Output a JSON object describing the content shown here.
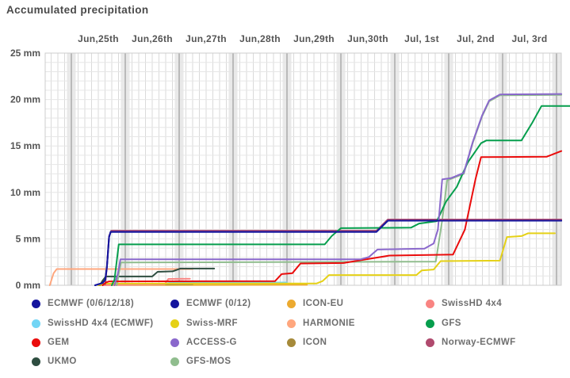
{
  "title": "Accumulated precipitation",
  "chart_data": {
    "type": "line",
    "title": "Accumulated precipitation",
    "x_axis": {
      "position": "top",
      "labels": [
        "Jun,25th",
        "Jun,26th",
        "Jun,27th",
        "Jun,28th",
        "Jun,29th",
        "Jun,30th",
        "Jul, 1st",
        "Jul, 2nd",
        "Jul, 3rd"
      ],
      "minor_divisions_per_day": 8
    },
    "y_axis": {
      "tick_labels": [
        "0 mm",
        "5 mm",
        "10 mm",
        "15 mm",
        "20 mm",
        "25 mm"
      ],
      "ticks": [
        0,
        5,
        10,
        15,
        20,
        25
      ],
      "ylim": [
        0,
        25
      ],
      "unit": "mm"
    },
    "grid": true,
    "legend_position": "bottom",
    "series": [
      {
        "id": "icon-eu",
        "name": "ICON-EU",
        "color": "#ecaa30",
        "points": [
          [
            0.5,
            0.02
          ],
          [
            4.37,
            0.05
          ]
        ]
      },
      {
        "id": "icon",
        "name": "ICON",
        "color": "#a68a3a",
        "points": [
          [
            0.6,
            0.05
          ],
          [
            2.25,
            0.12
          ]
        ]
      },
      {
        "id": "swisshd-4x4-ecmwf",
        "name": "SwissHD 4x4 (ECMWF)",
        "color": "#72d5f5",
        "points": [
          [
            0.6,
            0.0
          ],
          [
            0.68,
            0.15
          ],
          [
            1.75,
            0.18
          ],
          [
            1.85,
            0.3
          ],
          [
            4.0,
            0.3
          ]
        ]
      },
      {
        "id": "swisshd-4x4",
        "name": "SwissHD 4x4",
        "color": "#f98482",
        "points": [
          [
            0.6,
            0.02
          ],
          [
            1.73,
            0.1
          ],
          [
            1.8,
            0.68
          ],
          [
            2.2,
            0.7
          ]
        ]
      },
      {
        "id": "harmonie",
        "name": "HARMONIE",
        "color": "#ffa77e",
        "points": [
          [
            -0.4,
            0.0
          ],
          [
            -0.33,
            1.3
          ],
          [
            -0.27,
            1.75
          ],
          [
            2.25,
            1.75
          ]
        ]
      },
      {
        "id": "ukmo",
        "name": "UKMO",
        "color": "#2e4d40",
        "points": [
          [
            0.53,
            0.0
          ],
          [
            0.58,
            0.5
          ],
          [
            0.64,
            0.95
          ],
          [
            1.5,
            0.95
          ],
          [
            1.6,
            1.45
          ],
          [
            1.88,
            1.5
          ],
          [
            2.02,
            1.8
          ],
          [
            2.65,
            1.8
          ]
        ]
      },
      {
        "id": "swiss-mrf",
        "name": "Swiss-MRF",
        "color": "#e5d116",
        "points": [
          [
            0.5,
            0.0
          ],
          [
            0.6,
            0.18
          ],
          [
            4.55,
            0.2
          ],
          [
            4.66,
            0.45
          ],
          [
            4.78,
            1.1
          ],
          [
            6.4,
            1.1
          ],
          [
            6.5,
            1.6
          ],
          [
            6.72,
            1.7
          ],
          [
            6.85,
            2.6
          ],
          [
            7.95,
            2.65
          ],
          [
            8.08,
            5.2
          ],
          [
            8.35,
            5.3
          ],
          [
            8.47,
            5.6
          ],
          [
            8.97,
            5.6
          ]
        ]
      },
      {
        "id": "gfs-mos",
        "name": "GFS-MOS",
        "color": "#90bd8e",
        "points": [
          [
            0.84,
            0.0
          ],
          [
            0.92,
            2.45
          ],
          [
            6.76,
            2.55
          ],
          [
            6.88,
            7.0
          ],
          [
            6.97,
            11.3
          ],
          [
            7.28,
            12.0
          ],
          [
            7.45,
            15.4
          ],
          [
            7.62,
            18.2
          ],
          [
            7.75,
            19.8
          ],
          [
            7.95,
            20.45
          ],
          [
            9.09,
            20.5
          ]
        ]
      },
      {
        "id": "norway-ecmwf",
        "name": "Norway-ECMWF",
        "color": "#b04a6e",
        "points": [
          [
            0.63,
            0.1
          ],
          [
            0.66,
            2.1
          ],
          [
            0.7,
            5.3
          ],
          [
            0.74,
            5.88
          ],
          [
            5.66,
            5.88
          ],
          [
            5.87,
            7.08
          ],
          [
            9.09,
            7.08
          ]
        ]
      },
      {
        "id": "ecmwf-0-12",
        "name": "ECMWF (0/12)",
        "color": "#15159e",
        "points": [
          [
            0.44,
            0.0
          ],
          [
            0.58,
            0.25
          ],
          [
            0.63,
            0.6
          ],
          [
            0.66,
            2.0
          ],
          [
            0.7,
            5.2
          ],
          [
            0.73,
            5.75
          ],
          [
            5.66,
            5.75
          ],
          [
            5.87,
            6.95
          ],
          [
            9.09,
            6.95
          ]
        ]
      },
      {
        "id": "gem",
        "name": "GEM",
        "color": "#ea0c0c",
        "points": [
          [
            0.58,
            0.0
          ],
          [
            0.64,
            0.3
          ],
          [
            0.7,
            0.42
          ],
          [
            3.78,
            0.45
          ],
          [
            3.9,
            1.2
          ],
          [
            4.1,
            1.3
          ],
          [
            4.25,
            2.35
          ],
          [
            5.05,
            2.4
          ],
          [
            5.9,
            3.2
          ],
          [
            7.08,
            3.3
          ],
          [
            7.3,
            6.0
          ],
          [
            7.5,
            11.5
          ],
          [
            7.6,
            13.8
          ],
          [
            8.82,
            13.85
          ],
          [
            9.09,
            14.45
          ]
        ]
      },
      {
        "id": "gfs",
        "name": "GFS",
        "color": "#069e4d",
        "points": [
          [
            0.75,
            0.0
          ],
          [
            0.8,
            0.6
          ],
          [
            0.88,
            4.4
          ],
          [
            4.7,
            4.4
          ],
          [
            4.83,
            5.3
          ],
          [
            5.0,
            6.15
          ],
          [
            6.3,
            6.2
          ],
          [
            6.45,
            6.65
          ],
          [
            6.78,
            6.9
          ],
          [
            6.95,
            9.0
          ],
          [
            7.05,
            9.8
          ],
          [
            7.15,
            10.6
          ],
          [
            7.35,
            13.2
          ],
          [
            7.6,
            15.3
          ],
          [
            7.7,
            15.6
          ],
          [
            8.35,
            15.6
          ],
          [
            8.55,
            17.5
          ],
          [
            8.72,
            19.3
          ],
          [
            9.25,
            19.3
          ]
        ]
      },
      {
        "id": "access-g",
        "name": "ACCESS-G",
        "color": "#8a68cc",
        "points": [
          [
            0.8,
            0.0
          ],
          [
            0.86,
            1.2
          ],
          [
            0.91,
            2.8
          ],
          [
            5.37,
            2.8
          ],
          [
            5.52,
            3.05
          ],
          [
            5.68,
            3.85
          ],
          [
            6.55,
            3.95
          ],
          [
            6.72,
            4.5
          ],
          [
            6.8,
            6.0
          ],
          [
            6.88,
            11.4
          ],
          [
            7.05,
            11.55
          ],
          [
            7.28,
            12.1
          ],
          [
            7.45,
            15.5
          ],
          [
            7.62,
            18.3
          ],
          [
            7.75,
            19.9
          ],
          [
            7.95,
            20.55
          ],
          [
            9.09,
            20.6
          ]
        ]
      },
      {
        "id": "ecmwf-0-6-12-18",
        "name": "ECMWF (0/6/12/18)",
        "color": "#15159e",
        "points": [
          [
            0.44,
            0.0
          ],
          [
            0.58,
            0.25
          ],
          [
            0.63,
            0.6
          ],
          [
            0.66,
            2.0
          ],
          [
            0.7,
            5.2
          ],
          [
            0.73,
            5.75
          ],
          [
            5.66,
            5.75
          ],
          [
            5.87,
            6.95
          ],
          [
            9.09,
            6.95
          ]
        ]
      }
    ]
  },
  "legend": {
    "items": [
      {
        "label": "ECMWF (0/6/12/18)",
        "color": "#15159e",
        "col": 0,
        "row": 0
      },
      {
        "label": "ECMWF (0/12)",
        "color": "#15159e",
        "col": 1,
        "row": 0
      },
      {
        "label": "ICON-EU",
        "color": "#ecaa30",
        "col": 2,
        "row": 0
      },
      {
        "label": "SwissHD 4x4",
        "color": "#f98482",
        "col": 3,
        "row": 0
      },
      {
        "label": "SwissHD 4x4 (ECMWF)",
        "color": "#72d5f5",
        "col": 0,
        "row": 1
      },
      {
        "label": "Swiss-MRF",
        "color": "#e5d116",
        "col": 1,
        "row": 1
      },
      {
        "label": "HARMONIE",
        "color": "#ffa77e",
        "col": 2,
        "row": 1
      },
      {
        "label": "GFS",
        "color": "#069e4d",
        "col": 3,
        "row": 1
      },
      {
        "label": "GEM",
        "color": "#ea0c0c",
        "col": 0,
        "row": 2
      },
      {
        "label": "ACCESS-G",
        "color": "#8a68cc",
        "col": 1,
        "row": 2
      },
      {
        "label": "ICON",
        "color": "#a68a3a",
        "col": 2,
        "row": 2
      },
      {
        "label": "Norway-ECMWF",
        "color": "#b04a6e",
        "col": 3,
        "row": 2
      },
      {
        "label": "UKMO",
        "color": "#2e4d40",
        "col": 0,
        "row": 3
      },
      {
        "label": "GFS-MOS",
        "color": "#90bd8e",
        "col": 1,
        "row": 3
      }
    ]
  }
}
